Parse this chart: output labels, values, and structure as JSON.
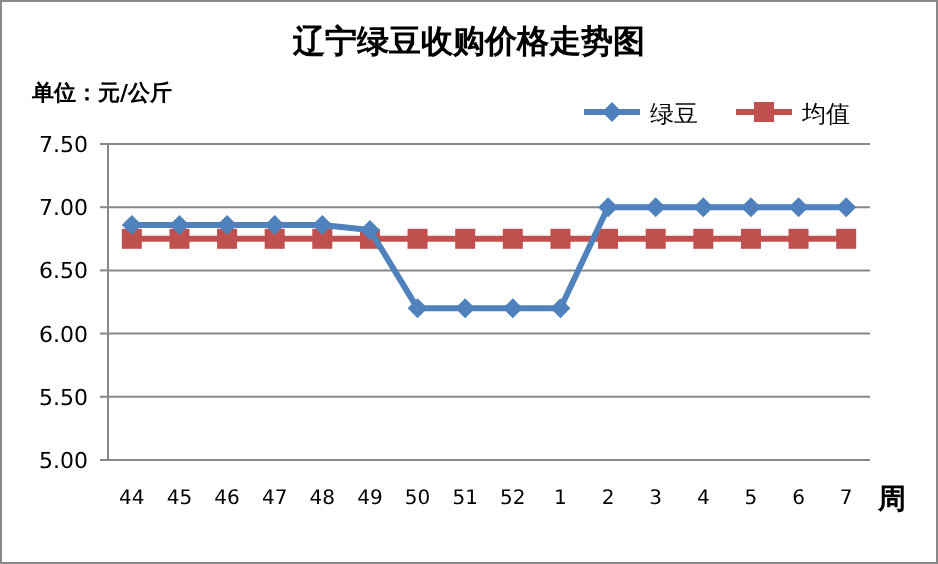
{
  "chart_data": {
    "type": "line",
    "title": "辽宁绿豆收购价格走势图",
    "ylabel": "单位：元/公斤",
    "xlabel": "周",
    "categories": [
      "44",
      "45",
      "46",
      "47",
      "48",
      "49",
      "50",
      "51",
      "52",
      "1",
      "2",
      "3",
      "4",
      "5",
      "6",
      "7"
    ],
    "series": [
      {
        "name": "绿豆",
        "color": "#4f81bd",
        "marker": "diamond",
        "values": [
          6.86,
          6.86,
          6.86,
          6.86,
          6.86,
          6.82,
          6.2,
          6.2,
          6.2,
          6.2,
          7.0,
          7.0,
          7.0,
          7.0,
          7.0,
          7.0
        ]
      },
      {
        "name": "均值",
        "color": "#c0504d",
        "marker": "square",
        "values": [
          6.75,
          6.75,
          6.75,
          6.75,
          6.75,
          6.75,
          6.75,
          6.75,
          6.75,
          6.75,
          6.75,
          6.75,
          6.75,
          6.75,
          6.75,
          6.75
        ]
      }
    ],
    "ylim": [
      5.0,
      7.5
    ],
    "yticks": [
      {
        "value": 5.0,
        "label": "5.00"
      },
      {
        "value": 5.5,
        "label": "5.50"
      },
      {
        "value": 6.0,
        "label": "6.00"
      },
      {
        "value": 6.5,
        "label": "6.50"
      },
      {
        "value": 7.0,
        "label": "7.00"
      },
      {
        "value": 7.5,
        "label": "7.50"
      }
    ],
    "grid": "y",
    "legend": "top right",
    "line_style": "solid"
  }
}
